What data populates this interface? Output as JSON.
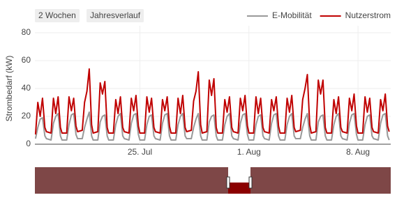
{
  "chart_data": {
    "type": "line",
    "buttons": [
      "2 Wochen",
      "Jahresverlauf"
    ],
    "ylabel": "Strombedarf (kW)",
    "ylim": [
      0,
      85
    ],
    "yticks": [
      0,
      20,
      40,
      60,
      80
    ],
    "xlim": [
      18.26,
      41.1
    ],
    "xticks": [
      {
        "value": 25,
        "label": "25. Jul"
      },
      {
        "value": 32,
        "label": "1. Aug"
      },
      {
        "value": 39,
        "label": "8. Aug"
      }
    ],
    "grid": true,
    "legend": "top-right",
    "x": [
      18.3,
      18.45,
      18.6,
      18.75,
      18.9,
      19,
      19.3,
      19.45,
      19.6,
      19.75,
      19.9,
      20,
      20.3,
      20.45,
      20.6,
      20.75,
      20.9,
      21,
      21.3,
      21.45,
      21.6,
      21.75,
      21.9,
      22,
      22.3,
      22.45,
      22.6,
      22.75,
      22.9,
      23,
      23.3,
      23.45,
      23.6,
      23.75,
      23.9,
      24,
      24.3,
      24.45,
      24.6,
      24.75,
      24.9,
      25,
      25.3,
      25.45,
      25.6,
      25.75,
      25.9,
      26,
      26.3,
      26.45,
      26.6,
      26.75,
      26.9,
      27,
      27.3,
      27.45,
      27.6,
      27.75,
      27.9,
      28,
      28.3,
      28.45,
      28.6,
      28.75,
      28.9,
      29,
      29.3,
      29.45,
      29.6,
      29.75,
      29.9,
      30,
      30.3,
      30.45,
      30.6,
      30.75,
      30.9,
      31,
      31.3,
      31.45,
      31.6,
      31.75,
      31.9,
      32,
      32.3,
      32.45,
      32.6,
      32.75,
      32.9,
      33,
      33.3,
      33.45,
      33.6,
      33.75,
      33.9,
      34,
      34.3,
      34.45,
      34.6,
      34.75,
      34.9,
      35,
      35.3,
      35.45,
      35.6,
      35.75,
      35.9,
      36,
      36.3,
      36.45,
      36.6,
      36.75,
      36.9,
      37,
      37.3,
      37.45,
      37.6,
      37.75,
      37.9,
      38,
      38.3,
      38.45,
      38.6,
      38.75,
      38.9,
      39,
      39.3,
      39.45,
      39.6,
      39.75,
      39.9,
      40,
      40.3,
      40.45,
      40.6,
      40.75,
      40.9,
      41
    ],
    "series": [
      {
        "name": "E-Mobilität",
        "color": "#999999",
        "values": [
          4,
          12,
          18,
          19,
          6,
          4,
          3,
          15,
          20,
          22,
          6,
          3,
          3,
          14,
          21,
          22,
          7,
          4,
          4,
          12,
          18,
          23,
          6,
          3,
          3,
          16,
          20,
          21,
          6,
          3,
          3,
          14,
          20,
          22,
          6,
          4,
          3,
          15,
          21,
          22,
          7,
          3,
          3,
          14,
          20,
          21,
          6,
          4,
          3,
          15,
          21,
          22,
          6,
          3,
          3,
          14,
          20,
          22,
          6,
          4,
          4,
          12,
          18,
          22,
          6,
          3,
          3,
          16,
          20,
          21,
          6,
          3,
          3,
          14,
          20,
          22,
          6,
          4,
          3,
          15,
          21,
          22,
          7,
          3,
          3,
          14,
          20,
          21,
          6,
          4,
          3,
          15,
          21,
          22,
          6,
          3,
          3,
          14,
          20,
          22,
          6,
          4,
          4,
          12,
          18,
          22,
          6,
          3,
          3,
          16,
          20,
          21,
          6,
          3,
          3,
          14,
          20,
          22,
          6,
          4,
          3,
          15,
          21,
          22,
          7,
          3,
          3,
          14,
          20,
          21,
          6,
          4,
          3,
          15,
          21,
          22,
          6,
          3
        ]
      },
      {
        "name": "Nutzerstrom",
        "color": "#c00000",
        "values": [
          7,
          30,
          20,
          33,
          12,
          9,
          8,
          33,
          22,
          34,
          12,
          8,
          8,
          34,
          24,
          33,
          13,
          9,
          10,
          30,
          38,
          54,
          14,
          8,
          9,
          44,
          36,
          45,
          12,
          8,
          8,
          32,
          22,
          34,
          12,
          9,
          8,
          33,
          24,
          35,
          13,
          8,
          8,
          34,
          23,
          33,
          12,
          9,
          8,
          32,
          24,
          34,
          13,
          8,
          8,
          33,
          22,
          35,
          12,
          9,
          10,
          31,
          38,
          52,
          14,
          8,
          9,
          46,
          35,
          47,
          12,
          8,
          8,
          32,
          23,
          34,
          12,
          9,
          8,
          33,
          24,
          35,
          13,
          8,
          8,
          34,
          22,
          33,
          12,
          9,
          8,
          32,
          24,
          34,
          13,
          8,
          8,
          33,
          23,
          35,
          12,
          9,
          10,
          32,
          40,
          50,
          14,
          8,
          9,
          46,
          36,
          46,
          12,
          8,
          8,
          32,
          22,
          34,
          12,
          9,
          8,
          33,
          24,
          36,
          13,
          8,
          8,
          34,
          23,
          33,
          12,
          9,
          8,
          32,
          24,
          36,
          13,
          9
        ]
      }
    ]
  }
}
